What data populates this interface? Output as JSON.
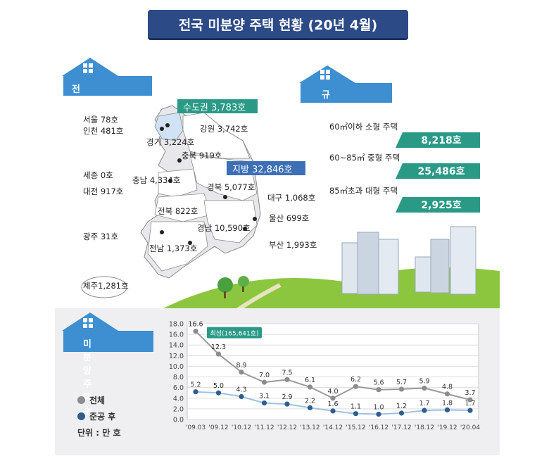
{
  "title": "전국 미분양 주택 현황 (20년 4월)",
  "sections": {
    "national": "전국 미분양 현황",
    "by_size": "규모별 현황",
    "count": "미분양 주택수"
  },
  "regions": {
    "capital_area": "수도권 3,783호",
    "provinces": "지방 32,846호",
    "seoul": "서울  78호",
    "incheon": "인천 481호",
    "gyeonggi": "경기 3,224호",
    "gangwon": "강원 3,742호",
    "chungbuk": "충북 919호",
    "sejong": "세종 0호",
    "chungnam": "충남 4,334호",
    "daejeon": "대전 917호",
    "gyeongbuk": "경북 5,077호",
    "daegu": "대구 1,068호",
    "jeonbuk": "전북 822호",
    "ulsan": "울산 699호",
    "gyeongnam": "경남 10,590호",
    "gwangju": "광주 31호",
    "busan": "부산 1,993호",
    "jeonnam": "전남 1,373호",
    "jeju": "제주1,281호"
  },
  "sizes": [
    {
      "label": "60㎡이하 소형 주택",
      "value": "8,218호"
    },
    {
      "label": "60~85㎡ 중형 주택",
      "value": "25,486호"
    },
    {
      "label": "85㎡초과 대형 주택",
      "value": "2,925호"
    }
  ],
  "legend": {
    "total": "전체",
    "completed": "준공 후",
    "unit": "단위 : 만 호"
  },
  "colors": {
    "navy": "#2c4a86",
    "blue": "#3d8fd1",
    "teal": "#2a9a86",
    "total_line": "#8c8c8c",
    "completed_line": "#2f5d8f"
  },
  "chart_data": {
    "type": "line",
    "categories": [
      "'09.03",
      "'09.12",
      "'10.12",
      "'11.12",
      "'12.12",
      "'13.12",
      "'14.12",
      "'15.12",
      "'16.12",
      "'17.12",
      "'18.12",
      "'19.12",
      "'20.04"
    ],
    "series": [
      {
        "name": "전체",
        "values": [
          16.6,
          12.3,
          8.9,
          7.0,
          7.5,
          6.1,
          4.0,
          6.2,
          5.6,
          5.7,
          5.9,
          4.8,
          3.7
        ]
      },
      {
        "name": "준공 후",
        "values": [
          5.2,
          5.0,
          4.3,
          3.1,
          2.9,
          2.2,
          1.6,
          1.1,
          1.0,
          1.2,
          1.7,
          1.8,
          1.7
        ]
      }
    ],
    "annotation": "최성(165,641호)",
    "ylim": [
      0,
      18
    ],
    "yticks": [
      "0.0",
      "2.0",
      "4.0",
      "6.0",
      "8.0",
      "10.0",
      "12.0",
      "14.0",
      "16.0",
      "18.0"
    ],
    "grid": true
  }
}
